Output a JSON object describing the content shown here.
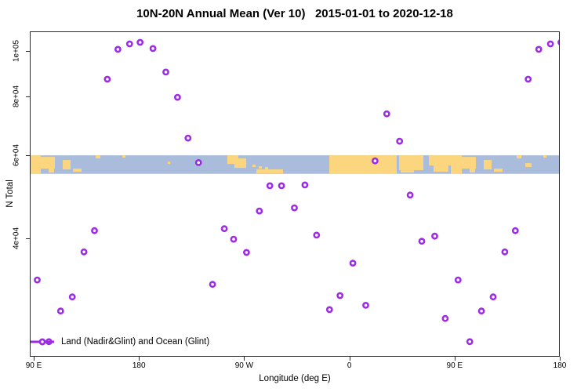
{
  "title": "10N-20N Annual Mean (Ver 10)   2015-01-01 to 2020-12-18",
  "legend": {
    "label": "Land (Nadir&Glint) and Ocean (Glint)"
  },
  "axes": {
    "x": {
      "label": "Longitude (deg E)",
      "ticks": [
        {
          "label": "90 E",
          "lon": 90
        },
        {
          "label": "180",
          "lon": 180
        },
        {
          "label": "90 W",
          "lon": 270
        },
        {
          "label": "0",
          "lon": 360
        },
        {
          "label": "90 E",
          "lon": 450
        },
        {
          "label": "180",
          "lon": 540
        }
      ]
    },
    "y": {
      "label": "N Total",
      "scale": "log",
      "ticks": [
        {
          "label": "1e+05",
          "value": 100000
        },
        {
          "label": "8e+04",
          "value": 80000
        },
        {
          "label": "6e+04",
          "value": 60000
        },
        {
          "label": "4e+04",
          "value": 40000
        }
      ]
    }
  },
  "colors": {
    "point": "#9C2BE8",
    "land": "#FBD67E",
    "ocean": "#A9BCDB",
    "axis": "#2b2b2b",
    "text": "#000000"
  },
  "map": {
    "description": "10N-20N world-map strip drawn across plot",
    "band_top_n": 60000,
    "band_bottom_n": 54800,
    "land_patches": [
      [
        0,
        0,
        14,
        24
      ],
      [
        13,
        2,
        19,
        15
      ],
      [
        24,
        17,
        7,
        5
      ],
      [
        42,
        6,
        10,
        12
      ],
      [
        55,
        17,
        11,
        4
      ],
      [
        84,
        0,
        6,
        4
      ],
      [
        118,
        0,
        4,
        3
      ],
      [
        176,
        8,
        3,
        3
      ],
      [
        252,
        0,
        14,
        11
      ],
      [
        261,
        4,
        15,
        12
      ],
      [
        284,
        12,
        4,
        3
      ],
      [
        292,
        14,
        4,
        3
      ],
      [
        300,
        15,
        4,
        3
      ],
      [
        289,
        18,
        34,
        5
      ],
      [
        382,
        0,
        86,
        24
      ],
      [
        471,
        0,
        31,
        19
      ],
      [
        473,
        19,
        17,
        3
      ],
      [
        509,
        0,
        31,
        13
      ],
      [
        515,
        13,
        19,
        8
      ],
      [
        537,
        0,
        14,
        24
      ],
      [
        550,
        2,
        19,
        15
      ],
      [
        561,
        17,
        7,
        5
      ],
      [
        579,
        6,
        10,
        12
      ],
      [
        592,
        17,
        11,
        4
      ],
      [
        621,
        0,
        6,
        4
      ],
      [
        632,
        10,
        8,
        5
      ],
      [
        655,
        0,
        4,
        3
      ]
    ]
  },
  "chart_data": {
    "type": "scatter",
    "title": "10N-20N Annual Mean (Ver 10)   2015-01-01 to 2020-12-18",
    "xlabel": "Longitude (deg E)",
    "ylabel": "N Total",
    "x_axis_span_deg": [
      90,
      540
    ],
    "x_wrap_note": "points with axis-longitude <= 183 are repeated at lon+360",
    "y_scale": "log",
    "ylim_approx": [
      22000,
      110000
    ],
    "series_name": "Land (Nadir&Glint) and Ocean (Glint)",
    "points": [
      {
        "lon": 93,
        "n": 32600
      },
      {
        "lon": 103,
        "n": 24100
      },
      {
        "lon": 113,
        "n": 28000
      },
      {
        "lon": 123,
        "n": 30000
      },
      {
        "lon": 133,
        "n": 37400
      },
      {
        "lon": 142,
        "n": 41500
      },
      {
        "lon": 153,
        "n": 87100
      },
      {
        "lon": 162,
        "n": 100800
      },
      {
        "lon": 172,
        "n": 103500
      },
      {
        "lon": 181,
        "n": 104300
      },
      {
        "lon": 192,
        "n": 101200
      },
      {
        "lon": 203,
        "n": 90200
      },
      {
        "lon": 213,
        "n": 79700
      },
      {
        "lon": 222,
        "n": 65300
      },
      {
        "lon": 231,
        "n": 57900
      },
      {
        "lon": 243,
        "n": 31900
      },
      {
        "lon": 253,
        "n": 41900
      },
      {
        "lon": 261,
        "n": 39800
      },
      {
        "lon": 272,
        "n": 37300
      },
      {
        "lon": 283,
        "n": 45700
      },
      {
        "lon": 292,
        "n": 51700
      },
      {
        "lon": 302,
        "n": 51700
      },
      {
        "lon": 313,
        "n": 46400
      },
      {
        "lon": 322,
        "n": 51900
      },
      {
        "lon": 332,
        "n": 40600
      },
      {
        "lon": 343,
        "n": 28200
      },
      {
        "lon": 352,
        "n": 30200
      },
      {
        "lon": 363,
        "n": 35400
      },
      {
        "lon": 374,
        "n": 28800
      },
      {
        "lon": 382,
        "n": 58400
      },
      {
        "lon": 392,
        "n": 73500
      },
      {
        "lon": 403,
        "n": 64300
      },
      {
        "lon": 412,
        "n": 49400
      },
      {
        "lon": 422,
        "n": 39400
      },
      {
        "lon": 433,
        "n": 40400
      },
      {
        "lon": 442,
        "n": 27000
      }
    ]
  }
}
